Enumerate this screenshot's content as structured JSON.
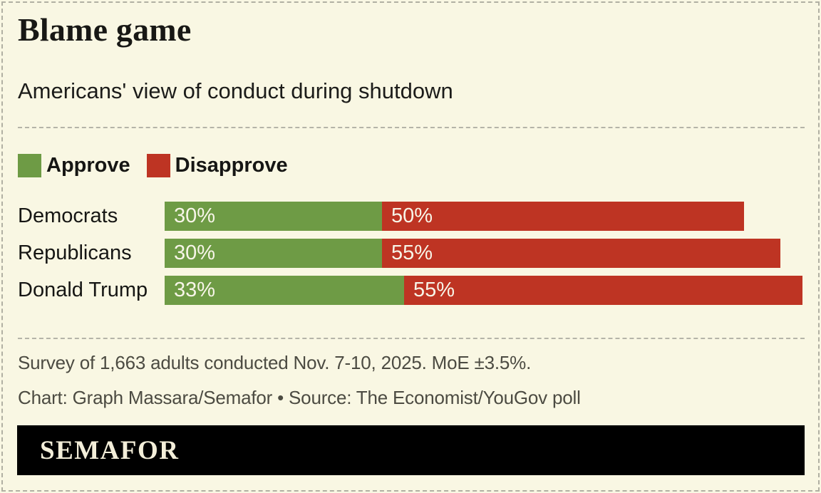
{
  "header": {
    "title": "Blame game",
    "subtitle": "Americans' view of conduct during shutdown"
  },
  "chart_data": {
    "type": "bar",
    "orientation": "horizontal",
    "stacked": true,
    "grid": false,
    "legend_position": "top-left",
    "categories": [
      "Democrats",
      "Republicans",
      "Donald Trump"
    ],
    "series": [
      {
        "name": "Approve",
        "color": "#6e9b45",
        "values": [
          30,
          30,
          33
        ]
      },
      {
        "name": "Disapprove",
        "color": "#be3423",
        "values": [
          50,
          55,
          55
        ]
      }
    ],
    "value_suffix": "%",
    "value_labels": "inside-start",
    "xlim": [
      0,
      88.3
    ]
  },
  "footer": {
    "note": "Survey of 1,663 adults conducted Nov. 7-10, 2025. MoE ±3.5%.",
    "credit": "Chart: Graph Massara/Semafor • Source: The Economist/YouGov poll",
    "logo": "SEMAFOR"
  },
  "colors": {
    "background": "#f9f7e3",
    "approve": "#6e9b45",
    "disapprove": "#be3423",
    "title_text": "#181815",
    "muted_text": "#4c4b42",
    "separator": "#b5b4a8",
    "logo_bar_bg": "#000000",
    "logo_text": "#f3eed9"
  }
}
